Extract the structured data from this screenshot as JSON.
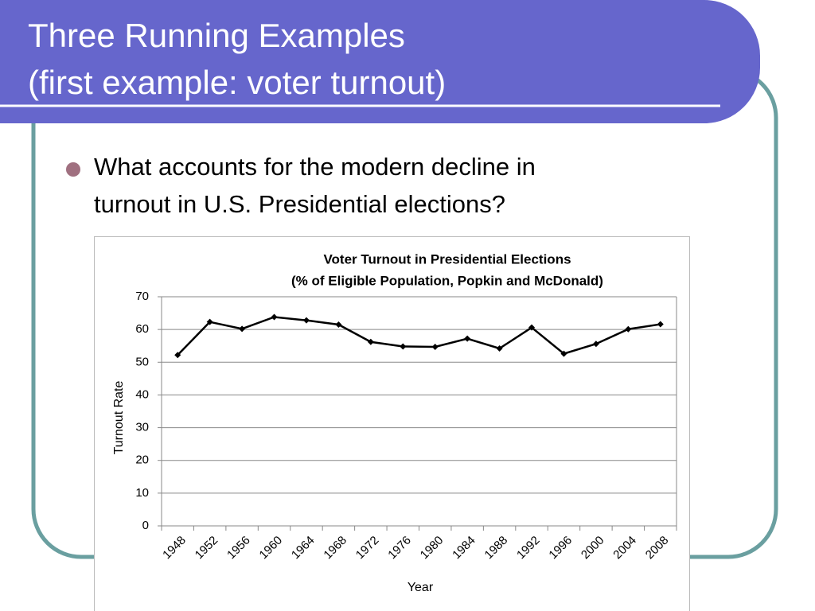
{
  "title": [
    "Three Running Examples",
    "(first example: voter turnout)"
  ],
  "bullet": [
    "What accounts for the modern decline in",
    "turnout in U.S. Presidential elections?"
  ],
  "chart_data": {
    "type": "line",
    "title": [
      "Voter Turnout in Presidential Elections",
      "(% of Eligible Population, Popkin and McDonald)"
    ],
    "x_label": "Year",
    "y_label": "Turnout Rate",
    "categories": [
      "1948",
      "1952",
      "1956",
      "1960",
      "1964",
      "1968",
      "1972",
      "1976",
      "1980",
      "1984",
      "1988",
      "1992",
      "1996",
      "2000",
      "2004",
      "2008"
    ],
    "values": [
      52.2,
      62.3,
      60.2,
      63.8,
      62.8,
      61.5,
      56.2,
      54.8,
      54.7,
      57.2,
      54.2,
      60.6,
      52.6,
      55.6,
      60.1,
      61.6
    ],
    "color": "#000000",
    "ylim": [
      0,
      70
    ],
    "yticks": [
      0,
      10,
      20,
      30,
      40,
      50,
      60,
      70
    ],
    "grid": true
  }
}
